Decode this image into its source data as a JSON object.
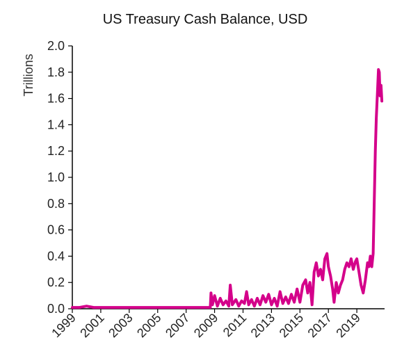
{
  "chart_data": {
    "type": "line",
    "title": "US Treasury Cash Balance, USD",
    "ylabel": "Trillions",
    "xlabel": "",
    "ylim": [
      0,
      2.0
    ],
    "xlim": [
      1999,
      2020.95
    ],
    "yticks": [
      "0.0",
      "0.2",
      "0.4",
      "0.6",
      "0.8",
      "1.0",
      "1.2",
      "1.4",
      "1.6",
      "1.8",
      "2.0"
    ],
    "xticks": [
      "1999",
      "2001",
      "2003",
      "2005",
      "2007",
      "2009",
      "2011",
      "2013",
      "2015",
      "2017",
      "2019"
    ],
    "grid": false,
    "series": [
      {
        "color": "#d4008a",
        "points": [
          [
            1999.0,
            0.01
          ],
          [
            1999.5,
            0.01
          ],
          [
            2000.0,
            0.02
          ],
          [
            2000.5,
            0.01
          ],
          [
            2001.0,
            0.01
          ],
          [
            2002.0,
            0.01
          ],
          [
            2003.0,
            0.01
          ],
          [
            2004.0,
            0.01
          ],
          [
            2005.0,
            0.01
          ],
          [
            2006.0,
            0.01
          ],
          [
            2007.0,
            0.01
          ],
          [
            2008.0,
            0.01
          ],
          [
            2008.7,
            0.01
          ],
          [
            2008.75,
            0.12
          ],
          [
            2008.85,
            0.03
          ],
          [
            2009.0,
            0.1
          ],
          [
            2009.2,
            0.02
          ],
          [
            2009.4,
            0.08
          ],
          [
            2009.6,
            0.03
          ],
          [
            2009.8,
            0.06
          ],
          [
            2010.0,
            0.02
          ],
          [
            2010.1,
            0.18
          ],
          [
            2010.25,
            0.03
          ],
          [
            2010.5,
            0.07
          ],
          [
            2010.7,
            0.02
          ],
          [
            2010.9,
            0.06
          ],
          [
            2011.1,
            0.04
          ],
          [
            2011.25,
            0.13
          ],
          [
            2011.4,
            0.03
          ],
          [
            2011.6,
            0.07
          ],
          [
            2011.8,
            0.02
          ],
          [
            2012.0,
            0.08
          ],
          [
            2012.2,
            0.03
          ],
          [
            2012.4,
            0.1
          ],
          [
            2012.6,
            0.05
          ],
          [
            2012.8,
            0.11
          ],
          [
            2013.0,
            0.03
          ],
          [
            2013.2,
            0.08
          ],
          [
            2013.4,
            0.02
          ],
          [
            2013.6,
            0.13
          ],
          [
            2013.8,
            0.04
          ],
          [
            2014.0,
            0.09
          ],
          [
            2014.2,
            0.04
          ],
          [
            2014.4,
            0.11
          ],
          [
            2014.6,
            0.05
          ],
          [
            2014.8,
            0.15
          ],
          [
            2015.0,
            0.05
          ],
          [
            2015.2,
            0.18
          ],
          [
            2015.4,
            0.22
          ],
          [
            2015.55,
            0.12
          ],
          [
            2015.7,
            0.2
          ],
          [
            2015.85,
            0.03
          ],
          [
            2016.0,
            0.28
          ],
          [
            2016.15,
            0.35
          ],
          [
            2016.3,
            0.25
          ],
          [
            2016.45,
            0.3
          ],
          [
            2016.6,
            0.22
          ],
          [
            2016.75,
            0.38
          ],
          [
            2016.9,
            0.42
          ],
          [
            2017.0,
            0.32
          ],
          [
            2017.15,
            0.25
          ],
          [
            2017.3,
            0.15
          ],
          [
            2017.4,
            0.05
          ],
          [
            2017.55,
            0.2
          ],
          [
            2017.7,
            0.12
          ],
          [
            2017.85,
            0.18
          ],
          [
            2018.0,
            0.22
          ],
          [
            2018.15,
            0.3
          ],
          [
            2018.3,
            0.35
          ],
          [
            2018.45,
            0.32
          ],
          [
            2018.6,
            0.38
          ],
          [
            2018.75,
            0.3
          ],
          [
            2018.9,
            0.36
          ],
          [
            2019.0,
            0.38
          ],
          [
            2019.15,
            0.28
          ],
          [
            2019.3,
            0.18
          ],
          [
            2019.45,
            0.12
          ],
          [
            2019.6,
            0.22
          ],
          [
            2019.75,
            0.35
          ],
          [
            2019.85,
            0.32
          ],
          [
            2019.95,
            0.4
          ],
          [
            2020.05,
            0.32
          ],
          [
            2020.15,
            0.42
          ],
          [
            2020.22,
            0.8
          ],
          [
            2020.3,
            1.2
          ],
          [
            2020.37,
            1.45
          ],
          [
            2020.45,
            1.65
          ],
          [
            2020.52,
            1.82
          ],
          [
            2020.58,
            1.8
          ],
          [
            2020.63,
            1.62
          ],
          [
            2020.7,
            1.7
          ],
          [
            2020.76,
            1.58
          ]
        ]
      }
    ]
  }
}
